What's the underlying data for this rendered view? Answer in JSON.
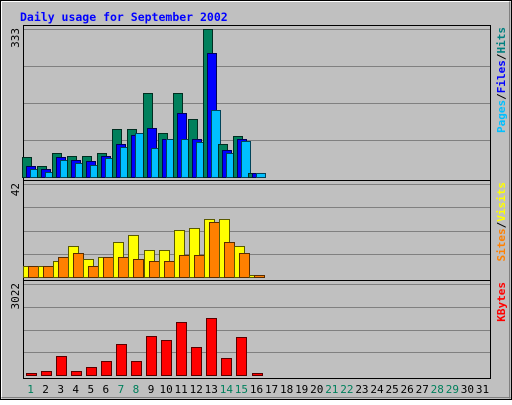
{
  "chart_data": {
    "type": "bar",
    "title": "Daily usage for September 2002",
    "days": [
      "1",
      "2",
      "3",
      "4",
      "5",
      "6",
      "7",
      "8",
      "9",
      "10",
      "11",
      "12",
      "13",
      "14",
      "15",
      "16",
      "17",
      "18",
      "19",
      "20",
      "21",
      "22",
      "23",
      "24",
      "25",
      "26",
      "27",
      "28",
      "29",
      "30",
      "31"
    ],
    "weekend_days": [
      "1",
      "7",
      "8",
      "14",
      "15",
      "21",
      "22",
      "28",
      "29"
    ],
    "panels": [
      {
        "id": "hits",
        "max_label": "333",
        "ymax": 333,
        "labels": [
          {
            "text": "Pages",
            "color": "#00bfff"
          },
          {
            "text": "/",
            "color": "#000000"
          },
          {
            "text": "Files",
            "color": "#0000ff"
          },
          {
            "text": "/",
            "color": "#000000"
          },
          {
            "text": "Hits",
            "color": "#008080"
          }
        ],
        "series": [
          {
            "name": "Hits",
            "color": "#00805c",
            "values": [
              45,
              25,
              55,
              48,
              48,
              55,
              108,
              108,
              190,
              100,
              188,
              130,
              333,
              75,
              92,
              10,
              0,
              0,
              0,
              0,
              0,
              0,
              0,
              0,
              0,
              0,
              0,
              0,
              0,
              0,
              0
            ]
          },
          {
            "name": "Files",
            "color": "#0000ff",
            "values": [
              25,
              18,
              45,
              38,
              35,
              48,
              75,
              95,
              110,
              85,
              145,
              85,
              278,
              60,
              85,
              8,
              0,
              0,
              0,
              0,
              0,
              0,
              0,
              0,
              0,
              0,
              0,
              0,
              0,
              0,
              0
            ]
          },
          {
            "name": "Pages",
            "color": "#00bfff",
            "values": [
              18,
              12,
              38,
              32,
              28,
              42,
              68,
              100,
              65,
              85,
              85,
              78,
              150,
              55,
              82,
              8,
              0,
              0,
              0,
              0,
              0,
              0,
              0,
              0,
              0,
              0,
              0,
              0,
              0,
              0,
              0
            ]
          }
        ]
      },
      {
        "id": "visits",
        "max_label": "42",
        "ymax": 42,
        "labels": [
          {
            "text": "Sites",
            "color": "#ff8000"
          },
          {
            "text": "/",
            "color": "#000000"
          },
          {
            "text": "Visits",
            "color": "#ffff00"
          }
        ],
        "series": [
          {
            "name": "Visits",
            "color": "#ffff00",
            "values": [
              5,
              5,
              7,
              14,
              8,
              9,
              16,
              19,
              12,
              12,
              21,
              22,
              26,
              26,
              14,
              1,
              0,
              0,
              0,
              0,
              0,
              0,
              0,
              0,
              0,
              0,
              0,
              0,
              0,
              0,
              0
            ]
          },
          {
            "name": "Sites",
            "color": "#ff8000",
            "values": [
              5,
              5,
              9,
              11,
              5,
              9,
              9,
              8,
              7,
              7,
              10,
              10,
              25,
              16,
              11,
              1,
              0,
              0,
              0,
              0,
              0,
              0,
              0,
              0,
              0,
              0,
              0,
              0,
              0,
              0,
              0
            ]
          }
        ]
      },
      {
        "id": "kbytes",
        "max_label": "3022",
        "ymax": 3022,
        "labels": [
          {
            "text": "KBytes",
            "color": "#ff0000"
          }
        ],
        "series": [
          {
            "name": "KBytes",
            "color": "#ff0000",
            "values": [
              80,
              140,
              640,
              120,
              280,
              480,
              1040,
              480,
              1280,
              1150,
              1750,
              920,
              1890,
              560,
              1260,
              60,
              0,
              0,
              0,
              0,
              0,
              0,
              0,
              0,
              0,
              0,
              0,
              0,
              0,
              0,
              0
            ]
          }
        ]
      }
    ]
  }
}
